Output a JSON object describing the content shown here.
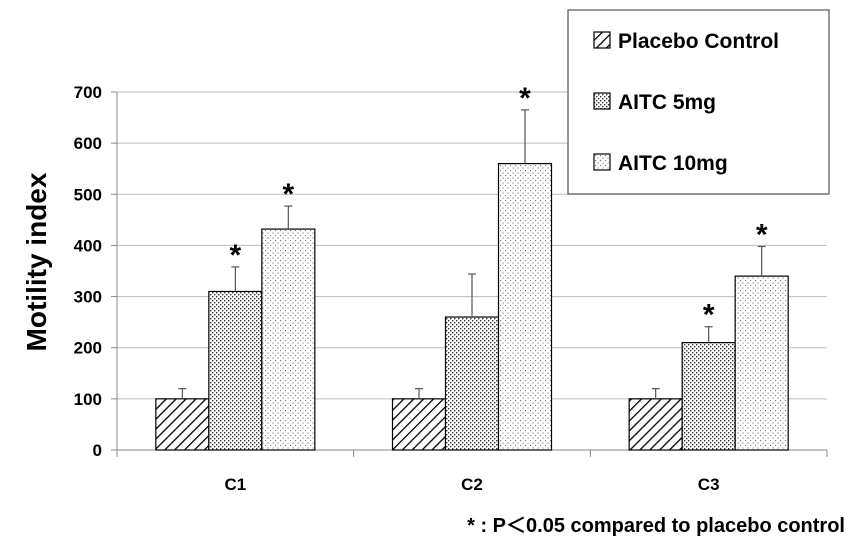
{
  "chart_data": {
    "type": "bar",
    "categories": [
      "C1",
      "C2",
      "C3"
    ],
    "ylabel": "Motility index",
    "ylim": [
      0,
      700
    ],
    "yticks": [
      0,
      100,
      200,
      300,
      400,
      500,
      600,
      700
    ],
    "grid": true,
    "legend_position": "top-right",
    "series": [
      {
        "name": "Placebo Control",
        "values": [
          100,
          100,
          100
        ],
        "errors": [
          20,
          20,
          20
        ],
        "significant": [
          false,
          false,
          false
        ],
        "pattern": "diagonal-hatch"
      },
      {
        "name": "AITC 5mg",
        "values": [
          310,
          260,
          210
        ],
        "errors": [
          48,
          84,
          31
        ],
        "significant": [
          true,
          false,
          true
        ],
        "pattern": "dense-dots"
      },
      {
        "name": "AITC 10mg",
        "values": [
          432,
          560,
          340
        ],
        "errors": [
          45,
          105,
          58
        ],
        "significant": [
          true,
          true,
          true
        ],
        "pattern": "sparse-dots"
      }
    ],
    "significance_marker": "*",
    "footnote": "* : P＜0.05  compared to placebo control"
  }
}
